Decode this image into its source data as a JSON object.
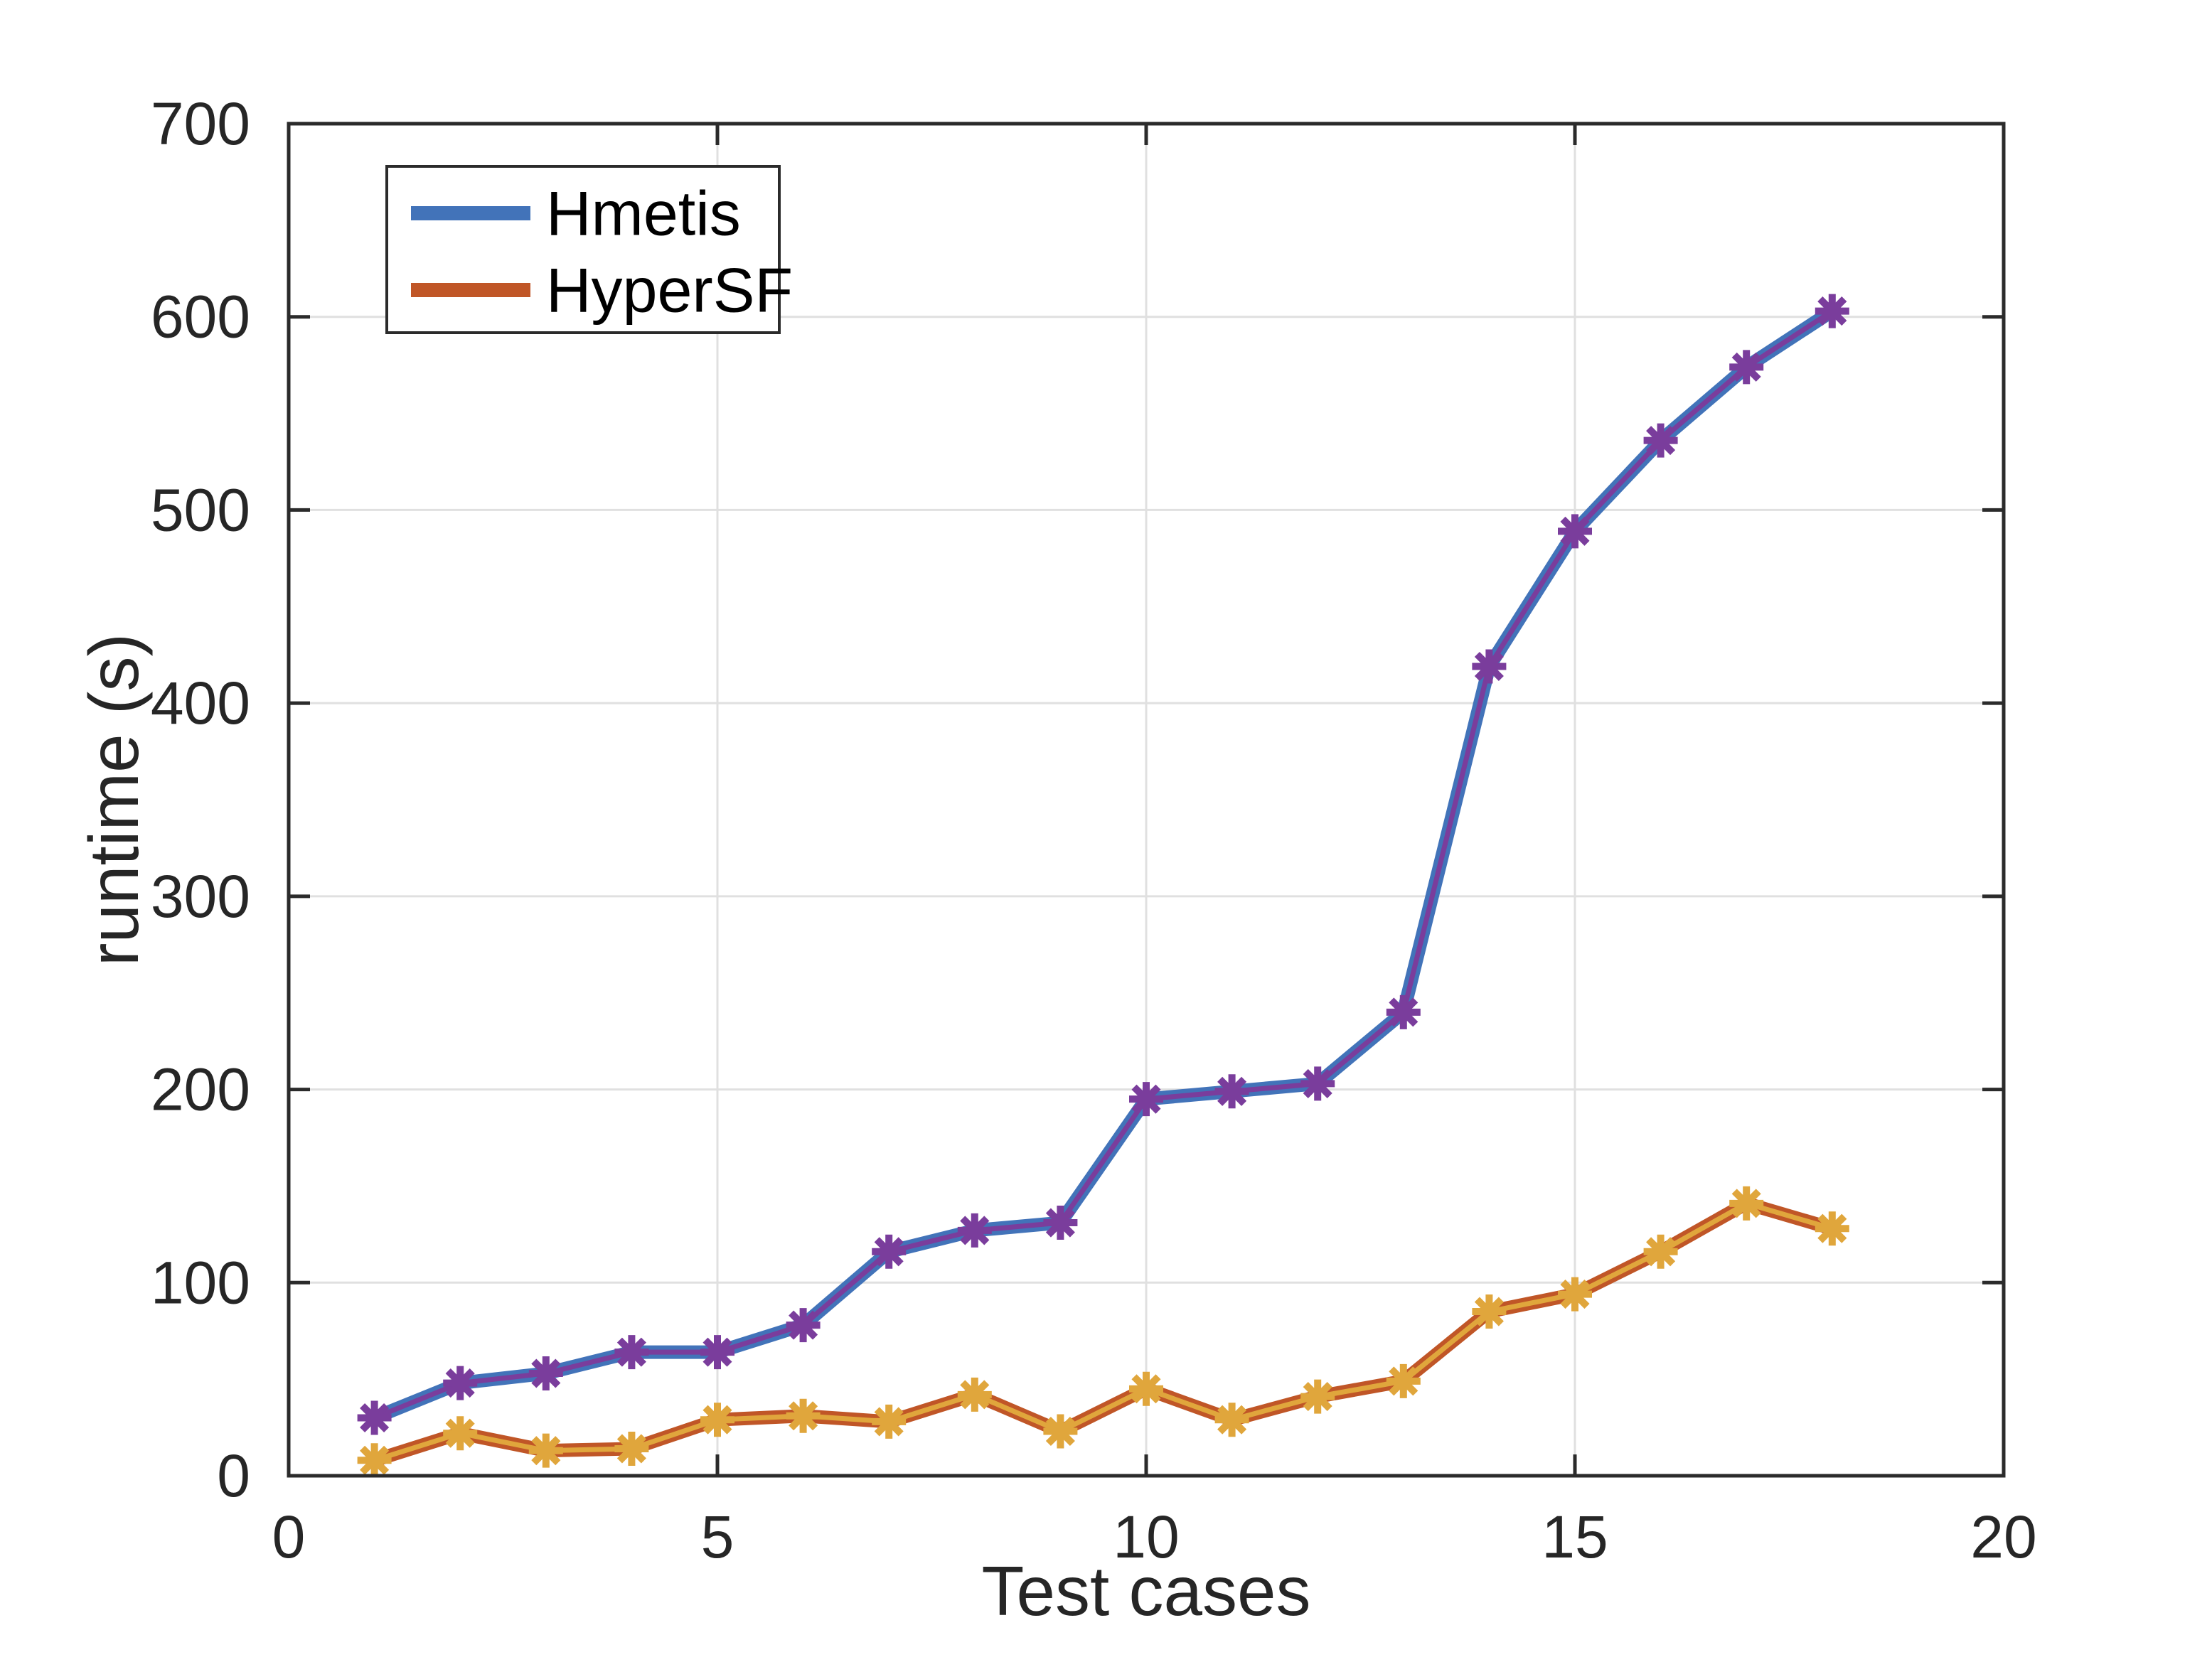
{
  "chart_data": {
    "type": "line",
    "title": "",
    "xlabel": "Test cases",
    "ylabel": "runtime (s)",
    "xlim": [
      0,
      20
    ],
    "ylim": [
      0,
      700
    ],
    "xticks": [
      "0",
      "5",
      "10",
      "15",
      "20"
    ],
    "yticks": [
      "0",
      "100",
      "200",
      "300",
      "400",
      "500",
      "600",
      "700"
    ],
    "grid": true,
    "legend_position": "top-left",
    "x": [
      1,
      2,
      3,
      4,
      5,
      6,
      7,
      8,
      9,
      10,
      11,
      12,
      13,
      14,
      15,
      16,
      17,
      18
    ],
    "series": [
      {
        "name": "Hmetis",
        "line_color": "#4273B9",
        "marker_color": "#7A3D9C",
        "marker": "asterisk",
        "values": [
          30,
          48,
          53,
          64,
          64,
          78,
          116,
          127,
          131,
          195,
          199,
          203,
          240,
          419,
          489,
          536,
          574,
          603
        ]
      },
      {
        "name": "HyperSF",
        "line_color": "#C05627",
        "marker_color": "#E0A63C",
        "marker": "asterisk",
        "values": [
          8,
          22,
          13,
          14,
          29,
          31,
          28,
          42,
          23,
          45,
          29,
          41,
          49,
          85,
          94,
          116,
          141,
          128
        ]
      }
    ],
    "colors": {
      "background": "#FFFFFF",
      "grid": "#E0E0E0",
      "axis": "#2B2B2B",
      "tick_text": "#262626",
      "legend_text": "#000000",
      "legend_border": "#2B2B2B"
    }
  }
}
